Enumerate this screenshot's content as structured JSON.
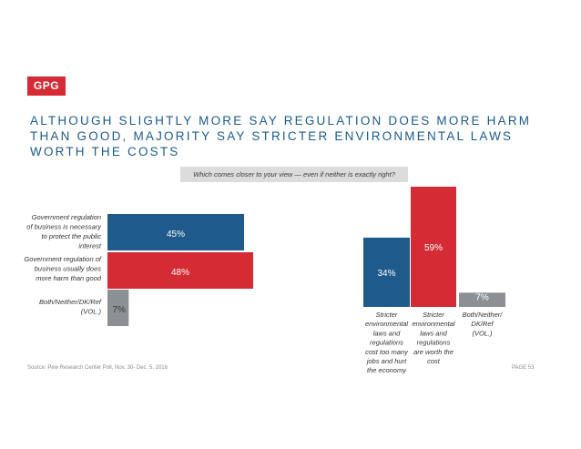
{
  "brand": {
    "logo_text": "GPG",
    "accent": "#d42b35"
  },
  "headline": {
    "line1": "ALTHOUGH SLIGHTLY MORE SAY REGULATION DOES MORE HARM",
    "line2": "THAN GOOD, MAJORITY SAY STRICTER ENVIRONMENTAL LAWS",
    "line3": "WORTH THE COSTS"
  },
  "question": "Which comes closer to your view — even if neither is exactly right?",
  "footer": {
    "source": "Source: Pew Research Center Poll, Nov. 30- Dec. 5, 2016",
    "page": "PAGE 53"
  },
  "chart_data": [
    {
      "type": "bar",
      "orientation": "horizontal",
      "categories": [
        [
          "Government regulation",
          "of business is necessary",
          "to protect the public",
          "interest"
        ],
        [
          "Government regulation of",
          "business usually does",
          "more harm than good"
        ],
        [
          "Both/Neither/DK/Ref",
          "(VOL.)"
        ]
      ],
      "values": [
        45,
        48,
        7
      ],
      "value_labels": [
        "45%",
        "48%",
        "7%"
      ],
      "colors": [
        "#1f5a8d",
        "#d42b35",
        "#8c9095"
      ],
      "xlim": [
        0,
        48
      ]
    },
    {
      "type": "bar",
      "orientation": "vertical",
      "categories": [
        [
          "Stricter",
          "environmental",
          "laws and",
          "regulations",
          "cost too many",
          "jobs and hurt",
          "the economy"
        ],
        [
          "Stricter",
          "environmental",
          "laws and",
          "regulations",
          "are worth the",
          "cost"
        ],
        [
          "Both/Neither/",
          "DK/Ref",
          "(VOL.)"
        ]
      ],
      "values": [
        34,
        59,
        7
      ],
      "value_labels": [
        "34%",
        "59%",
        "7%"
      ],
      "colors": [
        "#1f5a8d",
        "#d42b35",
        "#8c9095"
      ],
      "ylim": [
        0,
        59
      ]
    }
  ]
}
